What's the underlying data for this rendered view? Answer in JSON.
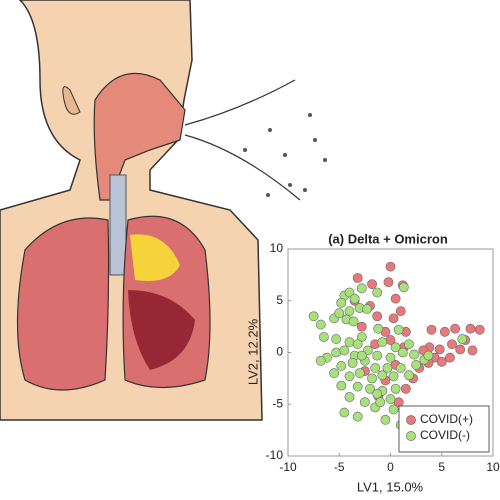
{
  "chart_data": {
    "type": "scatter",
    "title": "(a) Delta + Omicron",
    "x_label": "LV1, 15.0%",
    "y_label": "LV2, 12.2%",
    "xlim": [
      -10,
      10
    ],
    "ylim": [
      -10,
      10
    ],
    "xticks": [
      -10,
      -5,
      0,
      5,
      10
    ],
    "yticks": [
      -10,
      -5,
      0,
      5,
      10
    ],
    "grid": false,
    "legend": "lower right",
    "series": [
      {
        "name": "COVID(+)",
        "color": "#e8787a",
        "x": [
          -3.2,
          0,
          -1.8,
          -0.2,
          1.2,
          -3.5,
          -2.0,
          0.5,
          1.0,
          -1.3,
          0.3,
          -2.8,
          -0.5,
          1.5,
          0,
          -1.5,
          1.3,
          4.0,
          5.3,
          6.3,
          7.8,
          8.7,
          7.3,
          6.0,
          4.8,
          3.8,
          6.8,
          8.0,
          4.3,
          5.8,
          3.7,
          2.8,
          2.2,
          1.5,
          0.8,
          1.5,
          -1.2,
          -0.5,
          0.5,
          -2.5,
          5.0,
          3.2
        ],
        "values": [
          7.2,
          8.3,
          6.6,
          6.8,
          6.5,
          5.0,
          4.5,
          5.2,
          4.0,
          3.5,
          3.3,
          2.5,
          2.0,
          2.0,
          1.2,
          0.8,
          0.5,
          2.2,
          2.0,
          2.3,
          2.3,
          2.2,
          1.2,
          0.8,
          0.3,
          0.5,
          0.3,
          0.2,
          -0.5,
          -0.5,
          -1.0,
          -1.5,
          -2.5,
          -3.5,
          -4.8,
          -5.8,
          -4.2,
          -2.7,
          -1.2,
          -1.8,
          -0.9,
          0.2
        ]
      },
      {
        "name": "COVID(-)",
        "color": "#a8e07c",
        "x": [
          -4.5,
          -4,
          -3.5,
          -2.8,
          -1.3,
          1.3,
          -4.8,
          -3.0,
          -4,
          -2.3,
          -7.5,
          -6.8,
          -5.5,
          -5,
          -4.3,
          -3.6,
          -1.2,
          0.8,
          -6.5,
          -5.3,
          -2.8,
          -4.0,
          -3.2,
          -0.8,
          0.5,
          -5.3,
          -4.5,
          -3.5,
          -2.2,
          -1.3,
          0,
          1.2,
          2.3,
          -6.2,
          -4.8,
          -3.7,
          -2.5,
          -1.5,
          -0.3,
          1.0,
          2.5,
          3.3,
          -5.5,
          -4.0,
          -3.0,
          -1.8,
          -0.8,
          0.3,
          1.8,
          -4.8,
          -3.2,
          -2.0,
          -0.8,
          0.5,
          -1.3,
          0,
          -4.0,
          -2.5,
          -1.5,
          0.3,
          -4.5,
          -3.2,
          -0.5,
          1.0,
          -1.0,
          -2.8,
          1.8,
          3.7,
          -6.8,
          7.0
        ],
        "values": [
          5.5,
          5.8,
          5.2,
          6.2,
          5.8,
          6.3,
          4.8,
          4.3,
          4,
          4.2,
          3.5,
          2.7,
          3.3,
          3.8,
          3.2,
          3,
          2.3,
          2.2,
          1.5,
          1.3,
          1.5,
          1.0,
          0.8,
          1.0,
          0.5,
          0,
          0.2,
          -0.3,
          0.2,
          -0.3,
          -0.5,
          0,
          -0.2,
          -0.5,
          -1.3,
          -1.0,
          -0.8,
          -1.5,
          -1.5,
          -1.5,
          -1.2,
          -0.7,
          -2.0,
          -2.3,
          -2.0,
          -2.5,
          -2.2,
          -2.3,
          -2.2,
          -3.2,
          -3.3,
          -3.5,
          -3.7,
          -3.5,
          -4.0,
          -4.5,
          -4.3,
          -4.8,
          -5.3,
          -5.5,
          -5.8,
          -6.2,
          -6.5,
          -7.0,
          -4.8,
          -0.3,
          0.8,
          -0.3,
          -0.8,
          1.3
        ]
      }
    ]
  }
}
